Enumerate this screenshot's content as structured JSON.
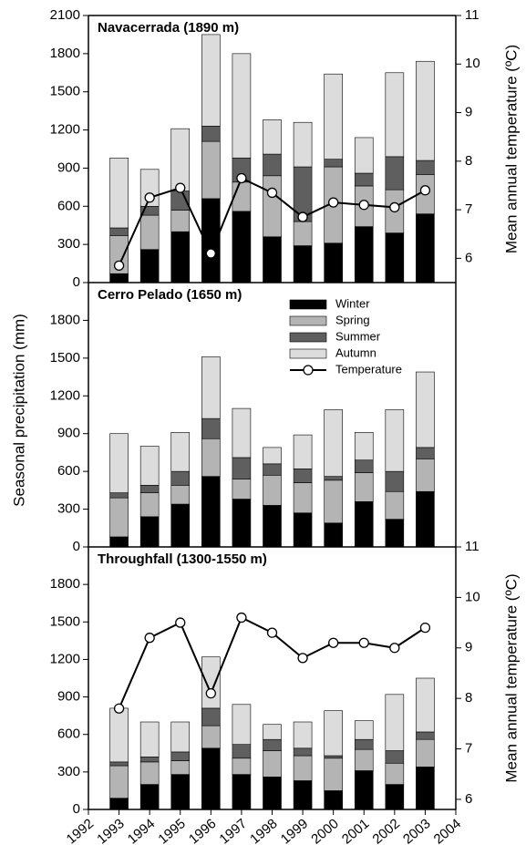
{
  "y_label": "Seasonal precipitation (mm)",
  "chart_data": [
    {
      "type": "bar",
      "title": "Navacerrada (1890 m)",
      "y2label": "Mean annual temperature (ºC)",
      "x": [
        1993,
        1994,
        1995,
        1996,
        1997,
        1998,
        1999,
        2000,
        2001,
        2002,
        2003
      ],
      "xlim": [
        1992,
        2004
      ],
      "ylim": [
        0,
        2100
      ],
      "yticks": [
        0,
        300,
        600,
        900,
        1200,
        1500,
        1800,
        2100
      ],
      "y2lim": [
        5.5,
        11
      ],
      "y2ticks": [
        6,
        7,
        8,
        9,
        10,
        11
      ],
      "series": [
        {
          "color": "#000000",
          "values": [
            70,
            260,
            400,
            660,
            560,
            360,
            290,
            310,
            440,
            390,
            540
          ]
        },
        {
          "color": "#b4b4b4",
          "values": [
            300,
            270,
            170,
            450,
            230,
            480,
            190,
            600,
            320,
            340,
            310
          ]
        },
        {
          "color": "#5f5f5f",
          "values": [
            60,
            70,
            150,
            120,
            190,
            170,
            430,
            60,
            100,
            260,
            110
          ]
        },
        {
          "color": "#dcdcdc",
          "values": [
            550,
            290,
            490,
            720,
            820,
            270,
            350,
            670,
            280,
            660,
            780
          ]
        },
        {
          "type": "line",
          "axis": "y2",
          "color": "#000000",
          "values": [
            5.85,
            7.25,
            7.45,
            6.1,
            7.65,
            7.35,
            6.85,
            7.15,
            7.1,
            7.05,
            7.4
          ]
        }
      ]
    },
    {
      "type": "bar",
      "title": "Cerro Pelado (1650 m)",
      "x": [
        1993,
        1994,
        1995,
        1996,
        1997,
        1998,
        1999,
        2000,
        2001,
        2002,
        2003
      ],
      "xlim": [
        1992,
        2004
      ],
      "ylim": [
        0,
        2100
      ],
      "yticks": [
        0,
        300,
        600,
        900,
        1200,
        1500,
        1800
      ],
      "legend": "top-right",
      "legend_line": {
        "name": "Temperature",
        "color": "#000000"
      },
      "series": [
        {
          "name": "Winter",
          "color": "#000000",
          "values": [
            80,
            240,
            340,
            560,
            380,
            330,
            270,
            190,
            360,
            220,
            440
          ]
        },
        {
          "name": "Spring",
          "color": "#b4b4b4",
          "values": [
            310,
            190,
            150,
            300,
            160,
            240,
            240,
            340,
            230,
            220,
            260
          ]
        },
        {
          "name": "Summer",
          "color": "#5f5f5f",
          "values": [
            40,
            60,
            110,
            160,
            170,
            90,
            110,
            30,
            100,
            160,
            90
          ]
        },
        {
          "name": "Autumn",
          "color": "#dcdcdc",
          "values": [
            470,
            310,
            310,
            490,
            390,
            130,
            270,
            530,
            220,
            490,
            600
          ]
        }
      ]
    },
    {
      "type": "bar",
      "title": "Throughfall (1300-1550 m)",
      "y2label": "Mean annual temperature (ºC)",
      "x": [
        1993,
        1994,
        1995,
        1996,
        1997,
        1998,
        1999,
        2000,
        2001,
        2002,
        2003
      ],
      "xlim": [
        1992,
        2004
      ],
      "xticks": [
        1992,
        1993,
        1994,
        1995,
        1996,
        1997,
        1998,
        1999,
        2000,
        2001,
        2002,
        2003,
        2004
      ],
      "ylim": [
        0,
        2100
      ],
      "yticks": [
        0,
        300,
        600,
        900,
        1200,
        1500,
        1800
      ],
      "y2lim": [
        5.8,
        11
      ],
      "y2ticks": [
        6,
        7,
        8,
        9,
        10,
        11
      ],
      "series": [
        {
          "color": "#000000",
          "values": [
            90,
            200,
            280,
            490,
            280,
            260,
            230,
            150,
            310,
            200,
            340
          ]
        },
        {
          "color": "#b4b4b4",
          "values": [
            260,
            180,
            110,
            180,
            130,
            210,
            200,
            260,
            170,
            170,
            220
          ]
        },
        {
          "color": "#5f5f5f",
          "values": [
            30,
            40,
            70,
            140,
            110,
            90,
            60,
            20,
            80,
            100,
            60
          ]
        },
        {
          "color": "#dcdcdc",
          "values": [
            430,
            280,
            240,
            410,
            320,
            120,
            210,
            360,
            150,
            450,
            430
          ]
        },
        {
          "type": "line",
          "axis": "y2",
          "color": "#000000",
          "values": [
            7.8,
            9.2,
            9.5,
            8.1,
            9.6,
            9.3,
            8.8,
            9.1,
            9.1,
            9.0,
            9.4
          ]
        }
      ]
    }
  ]
}
